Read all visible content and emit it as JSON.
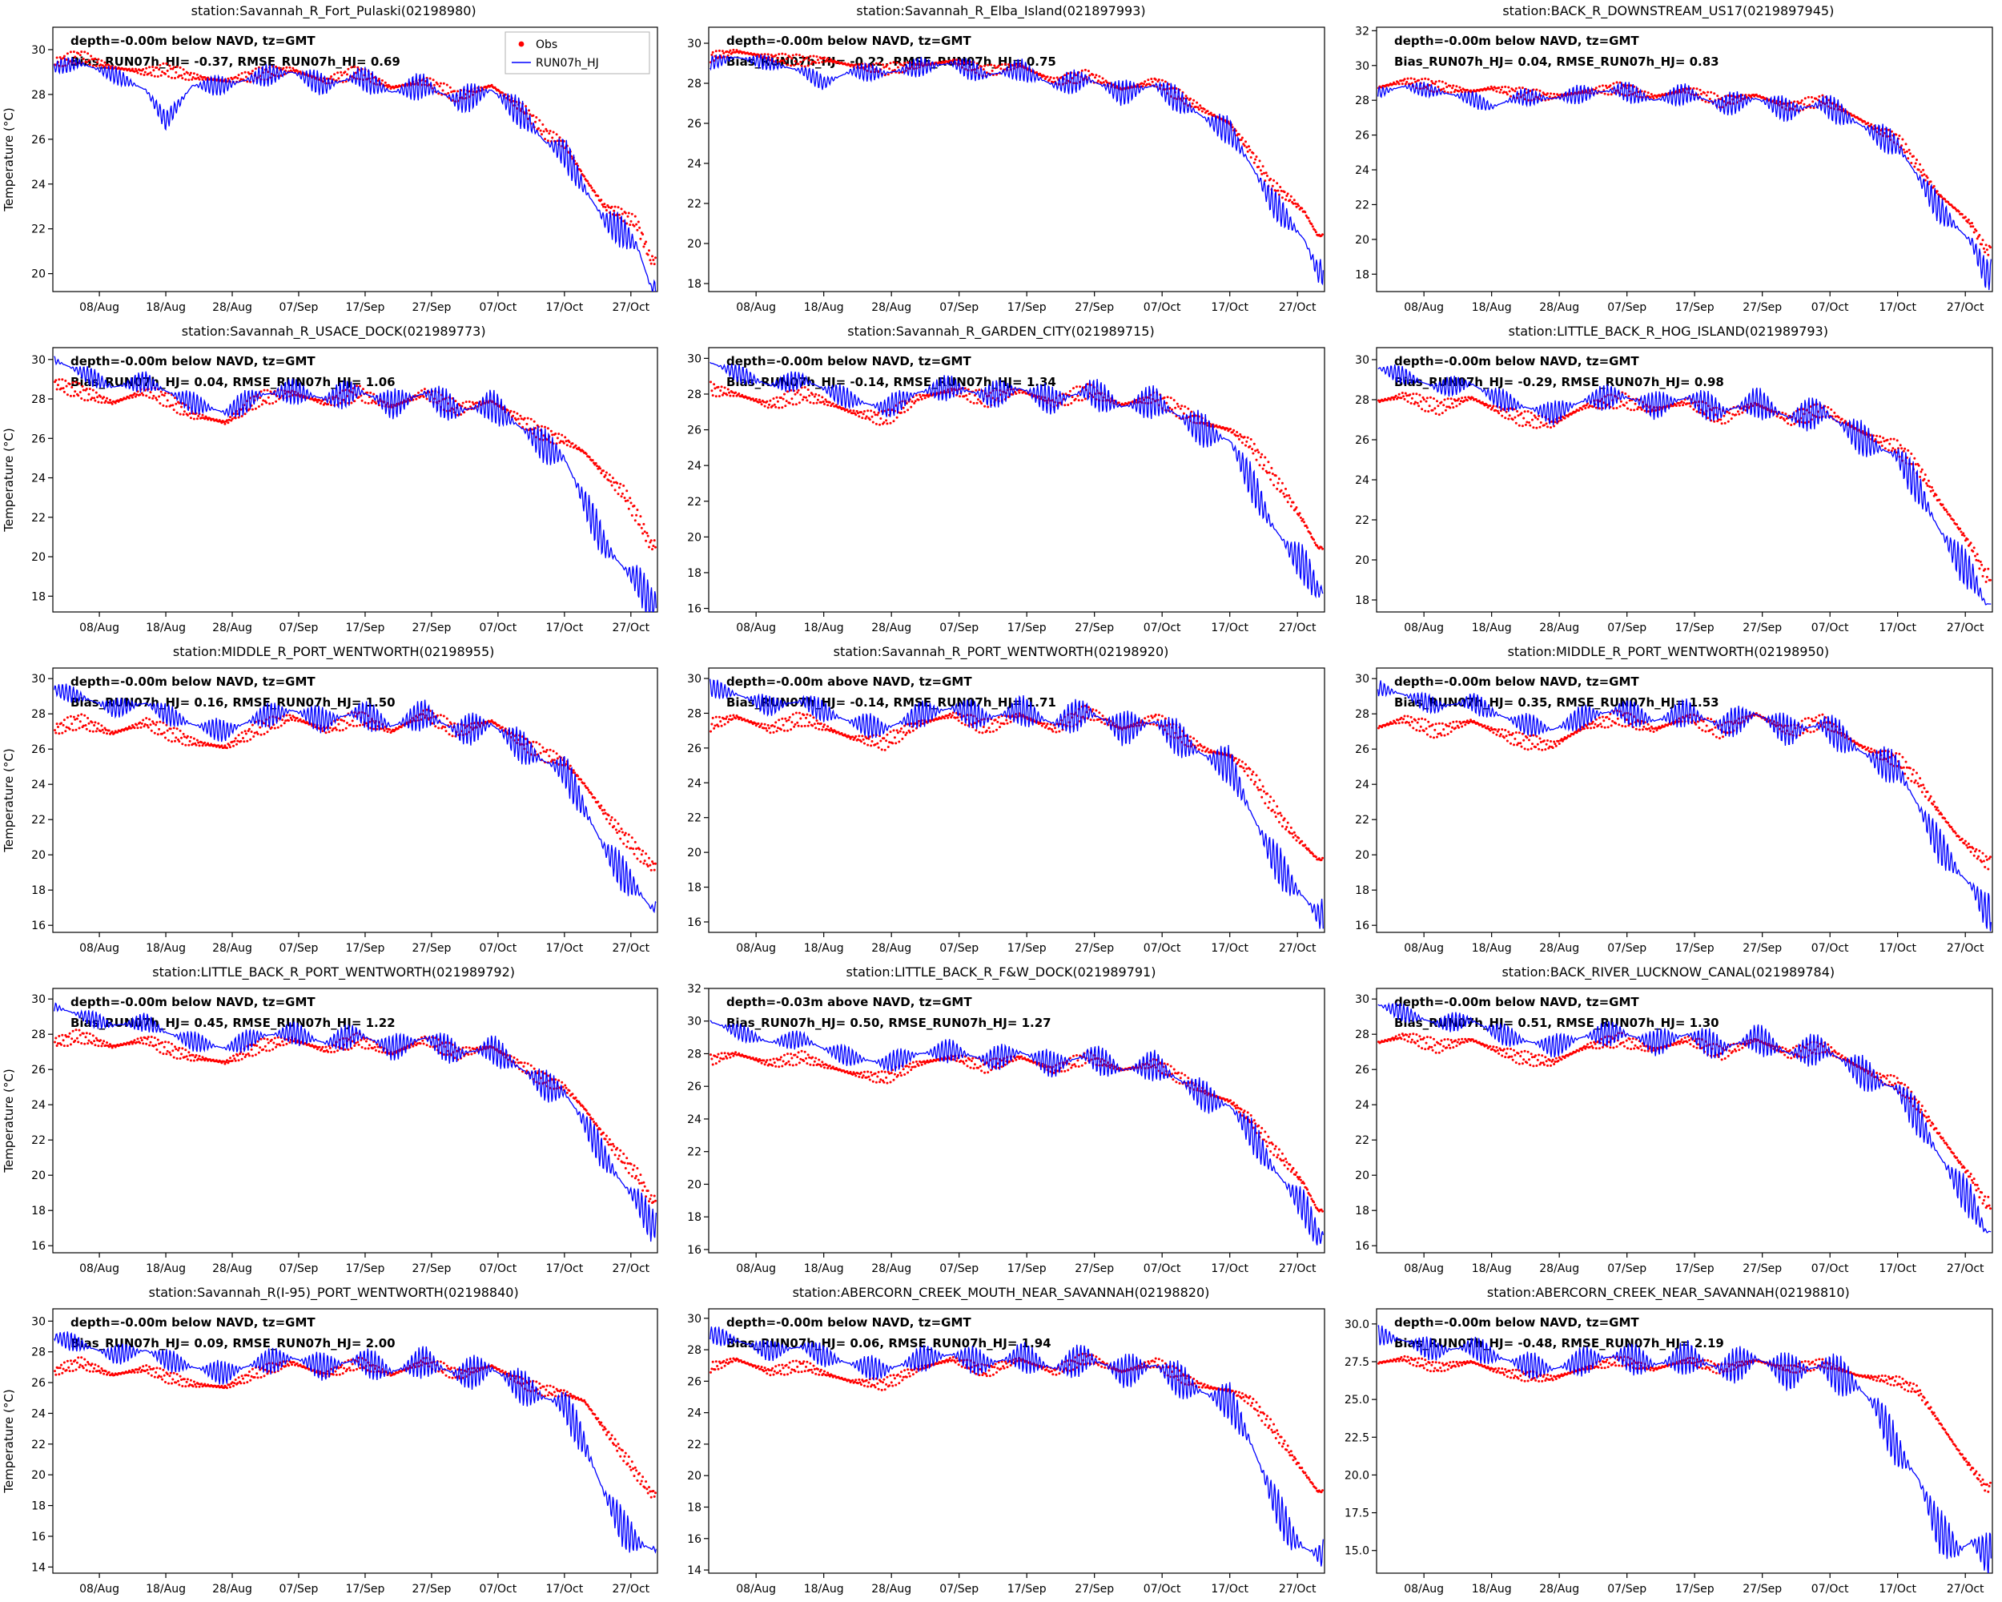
{
  "figure": {
    "ylabel": "Temperature (°C)",
    "xlim": [
      0,
      91
    ],
    "x_days": [
      0,
      4,
      9,
      14,
      17,
      21,
      26,
      31,
      36,
      41,
      46,
      51,
      56,
      61,
      66,
      71,
      74,
      77,
      80,
      83,
      86,
      88,
      90
    ],
    "x_tick_days": [
      7,
      17,
      27,
      37,
      47,
      57,
      67,
      77,
      87
    ],
    "x_tick_labels": [
      "08/Aug",
      "18/Aug",
      "28/Aug",
      "07/Sep",
      "17/Sep",
      "27/Sep",
      "07/Oct",
      "17/Oct",
      "27/Oct"
    ],
    "legend": {
      "obs_label": "Obs",
      "model_label": "RUN07h_HJ"
    },
    "colors": {
      "obs": "#ff0000",
      "model": "#0000ff"
    }
  },
  "chart_data": [
    {
      "type": "line+scatter",
      "title": "station:Savannah_R_Fort_Pulaski(02198980)",
      "depth_label": "depth=-0.00m below NAVD, tz=GMT",
      "stats_label": "Bias_RUN07h_HJ= -0.37, RMSE_RUN07h_HJ=  0.69",
      "ylim": [
        19.2,
        31.0
      ],
      "yticks": [
        20,
        22,
        24,
        26,
        28,
        30
      ],
      "obs": [
        29.4,
        29.7,
        29.2,
        29.0,
        29.1,
        28.8,
        28.6,
        28.9,
        29.1,
        28.6,
        29.0,
        28.3,
        28.6,
        27.9,
        28.4,
        27.3,
        26.3,
        25.8,
        24.3,
        23.0,
        22.6,
        22.2,
        20.6
      ],
      "model": [
        29.2,
        29.4,
        28.9,
        28.2,
        26.8,
        28.4,
        28.4,
        28.8,
        29.0,
        28.4,
        28.8,
        28.1,
        28.4,
        27.7,
        28.2,
        27.0,
        25.9,
        25.4,
        23.8,
        22.4,
        21.8,
        21.2,
        19.4
      ],
      "obs_amp": 0.3,
      "model_amp": 0.35,
      "show_legend": true
    },
    {
      "type": "line+scatter",
      "title": "station:Savannah_R_Elba_Island(021897993)",
      "depth_label": "depth=-0.00m below NAVD, tz=GMT",
      "stats_label": "Bias_RUN07h_HJ= -0.22, RMSE_RUN07h_HJ=  0.75",
      "ylim": [
        17.6,
        30.8
      ],
      "yticks": [
        18,
        20,
        22,
        24,
        26,
        28,
        30
      ],
      "obs": [
        29.3,
        29.6,
        29.3,
        29.1,
        29.2,
        28.9,
        28.7,
        28.9,
        29.1,
        28.6,
        28.9,
        28.1,
        28.4,
        27.7,
        28.1,
        27.1,
        26.5,
        26.0,
        24.6,
        23.0,
        22.2,
        21.6,
        20.4
      ],
      "model": [
        29.0,
        29.3,
        29.0,
        28.6,
        28.0,
        28.6,
        28.5,
        28.8,
        29.0,
        28.4,
        28.7,
        27.9,
        28.2,
        27.5,
        27.9,
        26.8,
        26.1,
        25.6,
        24.0,
        22.2,
        21.0,
        20.2,
        18.6
      ],
      "obs_amp": 0.3,
      "model_amp": 0.35,
      "show_legend": false
    },
    {
      "type": "line+scatter",
      "title": "station:BACK_R_DOWNSTREAM_US17(0219897945)",
      "depth_label": "depth=-0.00m below NAVD, tz=GMT",
      "stats_label": "Bias_RUN07h_HJ=  0.04, RMSE_RUN07h_HJ=  0.83",
      "ylim": [
        17.0,
        32.2
      ],
      "yticks": [
        18,
        20,
        22,
        24,
        26,
        28,
        30,
        32
      ],
      "obs": [
        28.7,
        29.1,
        28.8,
        28.5,
        28.7,
        28.4,
        28.2,
        28.5,
        28.7,
        28.2,
        28.6,
        27.9,
        28.3,
        27.6,
        28.0,
        27.0,
        26.3,
        25.8,
        24.2,
        22.6,
        21.6,
        20.8,
        19.4
      ],
      "model": [
        28.4,
        28.8,
        28.5,
        28.1,
        27.6,
        28.2,
        28.1,
        28.4,
        28.6,
        28.0,
        28.4,
        27.7,
        28.1,
        27.4,
        27.8,
        26.7,
        26.0,
        25.4,
        23.6,
        21.8,
        20.6,
        19.8,
        18.0
      ],
      "obs_amp": 0.35,
      "model_amp": 0.4,
      "show_legend": false
    },
    {
      "type": "line+scatter",
      "title": "station:Savannah_R_USACE_DOCK(021989773)",
      "depth_label": "depth=-0.00m below NAVD, tz=GMT",
      "stats_label": "Bias_RUN07h_HJ=  0.04, RMSE_RUN07h_HJ=  1.06",
      "ylim": [
        17.2,
        30.6
      ],
      "yticks": [
        18,
        20,
        22,
        24,
        26,
        28,
        30
      ],
      "obs": [
        28.8,
        28.4,
        27.8,
        28.4,
        28.0,
        27.2,
        26.8,
        28.0,
        28.3,
        27.8,
        28.3,
        27.6,
        28.3,
        27.5,
        27.9,
        26.8,
        26.2,
        25.9,
        25.3,
        24.2,
        23.2,
        22.0,
        20.6
      ],
      "model": [
        30.0,
        29.4,
        28.6,
        28.9,
        28.4,
        27.8,
        27.3,
        28.2,
        28.4,
        28.0,
        28.4,
        27.7,
        28.3,
        27.4,
        27.7,
        26.4,
        25.6,
        25.0,
        22.8,
        20.6,
        19.4,
        18.8,
        17.6
      ],
      "obs_amp": 0.4,
      "model_amp": 0.45,
      "show_legend": false
    },
    {
      "type": "line+scatter",
      "title": "station:Savannah_R_GARDEN_CITY(021989715)",
      "depth_label": "depth=-0.00m below NAVD, tz=GMT",
      "stats_label": "Bias_RUN07h_HJ= -0.14, RMSE_RUN07h_HJ=  1.34",
      "ylim": [
        15.8,
        30.6
      ],
      "yticks": [
        16,
        18,
        20,
        22,
        24,
        26,
        28,
        30
      ],
      "obs": [
        28.3,
        28.0,
        27.4,
        28.0,
        27.6,
        27.0,
        26.6,
        27.8,
        28.2,
        27.7,
        28.2,
        27.5,
        28.2,
        27.4,
        27.8,
        26.8,
        26.3,
        26.0,
        25.2,
        23.6,
        22.0,
        20.8,
        19.4
      ],
      "model": [
        29.8,
        29.2,
        28.5,
        28.8,
        28.3,
        27.7,
        27.2,
        28.1,
        28.4,
        27.9,
        28.3,
        27.6,
        28.2,
        27.3,
        27.6,
        26.4,
        25.8,
        25.4,
        23.2,
        20.8,
        19.2,
        18.4,
        17.0
      ],
      "obs_amp": 0.45,
      "model_amp": 0.5,
      "show_legend": false
    },
    {
      "type": "line+scatter",
      "title": "station:LITTLE_BACK_R_HOG_ISLAND(021989793)",
      "depth_label": "depth=-0.00m below NAVD, tz=GMT",
      "stats_label": "Bias_RUN07h_HJ= -0.29, RMSE_RUN07h_HJ=  0.98",
      "ylim": [
        17.4,
        30.6
      ],
      "yticks": [
        18,
        20,
        22,
        24,
        26,
        28,
        30
      ],
      "obs": [
        27.9,
        28.2,
        27.6,
        28.1,
        27.6,
        27.1,
        26.8,
        27.7,
        28.0,
        27.5,
        27.9,
        27.1,
        27.8,
        27.0,
        27.5,
        26.5,
        26.0,
        25.6,
        24.6,
        23.0,
        21.6,
        20.6,
        19.2
      ],
      "model": [
        29.6,
        29.2,
        28.6,
        28.8,
        28.2,
        27.7,
        27.3,
        28.0,
        28.2,
        27.7,
        28.1,
        27.4,
        27.9,
        27.1,
        27.4,
        26.2,
        25.6,
        25.2,
        23.6,
        21.6,
        20.0,
        19.2,
        17.8
      ],
      "obs_amp": 0.4,
      "model_amp": 0.45,
      "show_legend": false
    },
    {
      "type": "line+scatter",
      "title": "station:MIDDLE_R_PORT_WENTWORTH(02198955)",
      "depth_label": "depth=-0.00m below NAVD, tz=GMT",
      "stats_label": "Bias_RUN07h_HJ=  0.16, RMSE_RUN07h_HJ=  1.50",
      "ylim": [
        15.6,
        30.6
      ],
      "yticks": [
        16,
        18,
        20,
        22,
        24,
        26,
        28,
        30
      ],
      "obs": [
        27.1,
        27.6,
        26.9,
        27.5,
        27.0,
        26.4,
        26.1,
        27.2,
        27.8,
        27.1,
        27.8,
        27.0,
        28.0,
        27.0,
        27.6,
        26.3,
        25.7,
        25.3,
        24.0,
        22.4,
        21.0,
        20.2,
        19.4
      ],
      "model": [
        29.4,
        29.0,
        28.3,
        28.6,
        28.0,
        27.4,
        27.0,
        27.8,
        28.2,
        27.6,
        28.1,
        27.3,
        28.0,
        27.0,
        27.4,
        26.0,
        25.3,
        24.8,
        22.6,
        20.4,
        18.8,
        18.0,
        17.0
      ],
      "obs_amp": 0.45,
      "model_amp": 0.5,
      "show_legend": false
    },
    {
      "type": "line+scatter",
      "title": "station:Savannah_R_PORT_WENTWORTH(02198920)",
      "depth_label": "depth=-0.00m above NAVD, tz=GMT",
      "stats_label": "Bias_RUN07h_HJ= -0.14, RMSE_RUN07h_HJ=  1.71",
      "ylim": [
        15.4,
        30.6
      ],
      "yticks": [
        16,
        18,
        20,
        22,
        24,
        26,
        28,
        30
      ],
      "obs": [
        27.3,
        27.8,
        27.1,
        27.7,
        27.2,
        26.6,
        26.3,
        27.4,
        27.9,
        27.2,
        27.9,
        27.1,
        28.1,
        27.1,
        27.7,
        26.4,
        25.8,
        25.6,
        24.6,
        22.8,
        21.2,
        20.4,
        19.6
      ],
      "model": [
        29.5,
        29.1,
        28.4,
        28.7,
        28.1,
        27.5,
        27.1,
        27.9,
        28.3,
        27.7,
        28.2,
        27.4,
        28.1,
        27.1,
        27.5,
        26.1,
        25.4,
        25.0,
        22.4,
        20.0,
        18.2,
        17.4,
        16.4
      ],
      "obs_amp": 0.45,
      "model_amp": 0.55,
      "show_legend": false
    },
    {
      "type": "line+scatter",
      "title": "station:MIDDLE_R_PORT_WENTWORTH(02198950)",
      "depth_label": "depth=-0.00m below NAVD, tz=GMT",
      "stats_label": "Bias_RUN07h_HJ=  0.35, RMSE_RUN07h_HJ=  1.53",
      "ylim": [
        15.6,
        30.6
      ],
      "yticks": [
        16,
        18,
        20,
        22,
        24,
        26,
        28,
        30
      ],
      "obs": [
        27.2,
        27.7,
        27.0,
        27.6,
        27.1,
        26.5,
        26.2,
        27.3,
        27.8,
        27.1,
        27.8,
        27.0,
        28.0,
        27.0,
        27.6,
        26.3,
        25.7,
        25.4,
        24.2,
        22.5,
        21.0,
        20.3,
        19.6
      ],
      "model": [
        29.5,
        29.1,
        28.4,
        28.7,
        28.1,
        27.5,
        27.1,
        27.9,
        28.2,
        27.6,
        28.1,
        27.3,
        28.0,
        27.0,
        27.4,
        26.0,
        25.3,
        24.9,
        22.8,
        20.6,
        19.0,
        18.2,
        16.8
      ],
      "obs_amp": 0.45,
      "model_amp": 0.5,
      "show_legend": false
    },
    {
      "type": "line+scatter",
      "title": "station:LITTLE_BACK_R_PORT_WENTWORTH(021989792)",
      "depth_label": "depth=-0.00m below NAVD, tz=GMT",
      "stats_label": "Bias_RUN07h_HJ=  0.45, RMSE_RUN07h_HJ=  1.22",
      "ylim": [
        15.6,
        30.6
      ],
      "yticks": [
        16,
        18,
        20,
        22,
        24,
        26,
        28,
        30
      ],
      "obs": [
        27.5,
        27.9,
        27.3,
        27.7,
        27.2,
        26.7,
        26.4,
        27.3,
        27.7,
        27.1,
        27.7,
        26.9,
        27.7,
        26.9,
        27.3,
        26.1,
        25.4,
        25.0,
        23.8,
        22.2,
        20.8,
        20.0,
        18.6
      ],
      "model": [
        29.6,
        29.1,
        28.5,
        28.7,
        28.1,
        27.6,
        27.2,
        27.9,
        28.1,
        27.5,
        28.0,
        27.2,
        27.8,
        26.9,
        27.2,
        25.9,
        25.1,
        24.7,
        23.0,
        21.0,
        19.4,
        18.6,
        17.2
      ],
      "obs_amp": 0.4,
      "model_amp": 0.45,
      "show_legend": false
    },
    {
      "type": "line+scatter",
      "title": "station:LITTLE_BACK_R_F&W_DOCK(021989791)",
      "depth_label": "depth=-0.03m above NAVD, tz=GMT",
      "stats_label": "Bias_RUN07h_HJ=  0.50, RMSE_RUN07h_HJ=  1.27",
      "ylim": [
        15.8,
        32.0
      ],
      "yticks": [
        16,
        18,
        20,
        22,
        24,
        26,
        28,
        30,
        32
      ],
      "obs": [
        27.6,
        28.0,
        27.4,
        27.8,
        27.3,
        26.8,
        26.5,
        27.4,
        27.8,
        27.2,
        27.8,
        27.0,
        27.8,
        27.0,
        27.4,
        26.2,
        25.5,
        25.1,
        24.0,
        22.4,
        21.0,
        20.0,
        18.4
      ],
      "model": [
        30.0,
        29.4,
        28.7,
        28.9,
        28.3,
        27.8,
        27.4,
        28.0,
        28.2,
        27.6,
        28.1,
        27.3,
        27.9,
        27.0,
        27.3,
        26.0,
        25.2,
        24.8,
        23.2,
        21.2,
        19.6,
        18.6,
        16.8
      ],
      "obs_amp": 0.4,
      "model_amp": 0.5,
      "show_legend": false
    },
    {
      "type": "line+scatter",
      "title": "station:BACK_RIVER_LUCKNOW_CANAL(021989784)",
      "depth_label": "depth=-0.00m below NAVD, tz=GMT",
      "stats_label": "Bias_RUN07h_HJ=  0.51, RMSE_RUN07h_HJ=  1.30",
      "ylim": [
        15.6,
        30.6
      ],
      "yticks": [
        16,
        18,
        20,
        22,
        24,
        26,
        28,
        30
      ],
      "obs": [
        27.5,
        27.9,
        27.3,
        27.7,
        27.2,
        26.7,
        26.4,
        27.3,
        27.7,
        27.1,
        27.7,
        26.9,
        27.7,
        26.9,
        27.3,
        26.2,
        25.6,
        25.2,
        24.0,
        22.4,
        20.8,
        19.8,
        18.4
      ],
      "model": [
        29.7,
        29.2,
        28.6,
        28.8,
        28.2,
        27.7,
        27.3,
        27.9,
        28.1,
        27.5,
        28.0,
        27.2,
        27.8,
        26.9,
        27.2,
        26.0,
        25.3,
        24.9,
        23.2,
        21.2,
        19.4,
        18.4,
        16.8
      ],
      "obs_amp": 0.4,
      "model_amp": 0.5,
      "show_legend": false
    },
    {
      "type": "line+scatter",
      "title": "station:Savannah_R(I-95)_PORT_WENTWORTH(02198840)",
      "depth_label": "depth=-0.00m below NAVD, tz=GMT",
      "stats_label": "Bias_RUN07h_HJ=  0.09, RMSE_RUN07h_HJ=  2.00",
      "ylim": [
        13.6,
        30.8
      ],
      "yticks": [
        14,
        16,
        18,
        20,
        22,
        24,
        26,
        28,
        30
      ],
      "obs": [
        26.7,
        27.3,
        26.5,
        26.9,
        26.4,
        25.9,
        25.7,
        26.7,
        27.3,
        26.5,
        27.3,
        26.5,
        27.4,
        26.5,
        27.1,
        25.9,
        25.5,
        25.3,
        24.8,
        23.0,
        21.2,
        20.0,
        18.8
      ],
      "model": [
        29.0,
        28.5,
        27.8,
        28.1,
        27.5,
        27.0,
        26.6,
        27.3,
        27.6,
        27.0,
        27.5,
        26.7,
        27.4,
        26.5,
        26.9,
        25.6,
        25.0,
        24.6,
        22.0,
        18.8,
        16.4,
        15.6,
        15.2
      ],
      "obs_amp": 0.4,
      "model_amp": 0.6,
      "show_legend": false
    },
    {
      "type": "line+scatter",
      "title": "station:ABERCORN_CREEK_MOUTH_NEAR_SAVANNAH(02198820)",
      "depth_label": "depth=-0.00m below NAVD, tz=GMT",
      "stats_label": "Bias_RUN07h_HJ=  0.06, RMSE_RUN07h_HJ=  1.94",
      "ylim": [
        13.8,
        30.6
      ],
      "yticks": [
        14,
        16,
        18,
        20,
        22,
        24,
        26,
        28,
        30
      ],
      "obs": [
        26.8,
        27.4,
        26.6,
        27.0,
        26.5,
        26.0,
        25.8,
        26.8,
        27.4,
        26.6,
        27.4,
        26.6,
        27.5,
        26.6,
        27.2,
        26.0,
        25.6,
        25.4,
        24.8,
        23.2,
        21.4,
        20.2,
        19.0
      ],
      "model": [
        29.0,
        28.6,
        27.9,
        28.2,
        27.6,
        27.1,
        26.7,
        27.4,
        27.7,
        27.1,
        27.6,
        26.8,
        27.5,
        26.6,
        27.0,
        25.7,
        25.1,
        24.7,
        22.2,
        19.0,
        16.2,
        15.4,
        15.0
      ],
      "obs_amp": 0.4,
      "model_amp": 0.6,
      "show_legend": false
    },
    {
      "type": "line+scatter",
      "title": "station:ABERCORN_CREEK_NEAR_SAVANNAH(02198810)",
      "depth_label": "depth=-0.00m below NAVD, tz=GMT",
      "stats_label": "Bias_RUN07h_HJ= -0.48, RMSE_RUN07h_HJ=  2.19",
      "ylim": [
        13.5,
        31.0
      ],
      "yticks": [
        15.0,
        17.5,
        20.0,
        22.5,
        25.0,
        27.5,
        30.0
      ],
      "obs": [
        27.4,
        27.7,
        27.1,
        27.5,
        27.0,
        26.6,
        26.4,
        27.1,
        27.6,
        27.0,
        27.6,
        27.0,
        27.6,
        27.0,
        27.4,
        26.6,
        26.4,
        26.2,
        25.6,
        23.6,
        21.6,
        20.4,
        19.2
      ],
      "model": [
        29.3,
        28.9,
        28.2,
        28.5,
        27.9,
        27.4,
        27.0,
        27.6,
        27.9,
        27.3,
        27.8,
        27.0,
        27.7,
        26.8,
        27.2,
        25.9,
        24.4,
        21.6,
        19.8,
        16.4,
        15.0,
        15.6,
        14.8
      ],
      "obs_amp": 0.35,
      "model_amp": 0.7,
      "show_legend": false
    }
  ]
}
